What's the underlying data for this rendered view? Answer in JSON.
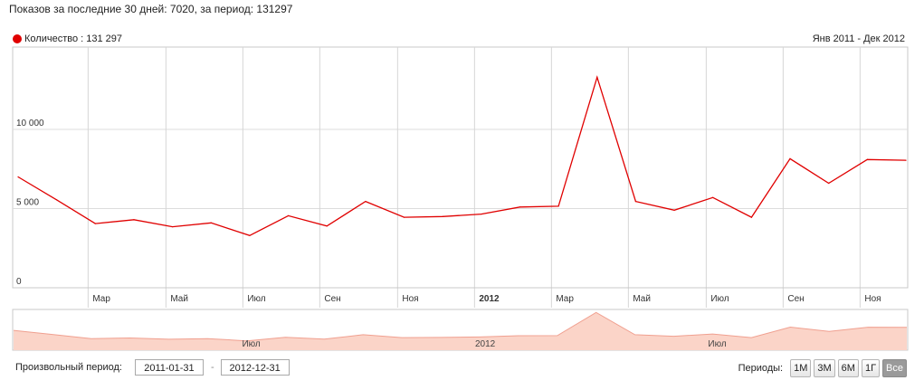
{
  "header": {
    "summary": "Показов за последние 30 дней: 7020, за период: 131297"
  },
  "legend": {
    "label": "Количество : 131 297",
    "color": "#e00000"
  },
  "range_label": "Янв 2011 - Дек 2012",
  "controls": {
    "custom_period_label": "Произвольный период:",
    "start_date": "2011-01-31",
    "separator": "-",
    "end_date": "2012-12-31",
    "periods_label": "Периоды:",
    "period_buttons": [
      "1М",
      "3М",
      "6М",
      "1Г",
      "Все"
    ],
    "active_period": "Все"
  },
  "chart_data": {
    "type": "line",
    "title": "",
    "xlabel": "",
    "ylabel": "",
    "x": [
      "2011-01",
      "2011-02",
      "2011-03",
      "2011-04",
      "2011-05",
      "2011-06",
      "2011-07",
      "2011-08",
      "2011-09",
      "2011-10",
      "2011-11",
      "2011-12",
      "2012-01",
      "2012-02",
      "2012-03",
      "2012-04",
      "2012-05",
      "2012-06",
      "2012-07",
      "2012-08",
      "2012-09",
      "2012-10",
      "2012-11",
      "2012-12"
    ],
    "series": [
      {
        "name": "Количество",
        "values": [
          7000,
          5550,
          4050,
          4300,
          3850,
          4100,
          3300,
          4550,
          3900,
          5450,
          4450,
          4500,
          4650,
          5100,
          5150,
          13300,
          5450,
          4900,
          5700,
          4450,
          8150,
          6600,
          8100,
          8050
        ]
      }
    ],
    "ylim": [
      0,
      15200
    ],
    "yticks": [
      0,
      5000,
      10000
    ],
    "ytick_labels": [
      "0",
      "5 000",
      "10 000"
    ],
    "xtick_labels": [
      "Мар",
      "Май",
      "Июл",
      "Сен",
      "Ноя",
      "2012",
      "Мар",
      "Май",
      "Июл",
      "Сен",
      "Ноя"
    ],
    "navigator_labels": [
      "Июл",
      "2012",
      "Июл"
    ],
    "color": "#e00000",
    "navigator_fill": "#fbd4c8",
    "grid": true
  }
}
